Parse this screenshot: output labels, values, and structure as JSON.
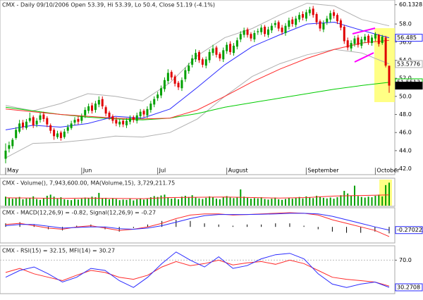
{
  "chart_data": [
    {
      "type": "candlestick",
      "title": "CMX - Daily 09/10/2006 Open 53.39, Hi 53.39, Lo 50.4, Close 51.19 (-4.1%)",
      "categories": [
        "May",
        null,
        null,
        null,
        null,
        null,
        null,
        null,
        null,
        null,
        null,
        null,
        null,
        null,
        null,
        null,
        null,
        null,
        null,
        null,
        null,
        null,
        "Jun",
        null,
        null,
        null,
        null,
        null,
        null,
        null,
        null,
        null,
        null,
        null,
        null,
        null,
        null,
        null,
        null,
        null,
        null,
        null,
        null,
        null,
        "Jul",
        null,
        null,
        null,
        null,
        null,
        null,
        null,
        null,
        null,
        null,
        null,
        null,
        null,
        null,
        null,
        null,
        null,
        null,
        null,
        "August",
        null,
        null,
        null,
        null,
        null,
        null,
        null,
        null,
        null,
        null,
        null,
        null,
        null,
        null,
        null,
        null,
        null,
        null,
        null,
        null,
        null,
        null,
        "September",
        null,
        null,
        null,
        null,
        null,
        null,
        null,
        null,
        null,
        null,
        null,
        null,
        null,
        null,
        null,
        null,
        null,
        null,
        null,
        "October",
        null,
        null,
        null,
        null
      ],
      "open": [
        43.1,
        44.2,
        44.5,
        45.4,
        46.1,
        47.1,
        46.5,
        47.3,
        47.7,
        46.9,
        47.4,
        48.0,
        47.6,
        46.8,
        46.3,
        45.5,
        46.0,
        45.5,
        46.2,
        46.5,
        47.1,
        47.5,
        47.3,
        47.9,
        48.4,
        49.0,
        48.5,
        49.1,
        49.7,
        48.8,
        48.2,
        47.8,
        47.4,
        46.9,
        47.3,
        46.8,
        47.2,
        47.7,
        47.3,
        47.8,
        48.4,
        47.9,
        48.5,
        49.1,
        49.8,
        50.1,
        50.8,
        51.7,
        52.7,
        52.2,
        51.5,
        50.9,
        51.9,
        52.8,
        53.5,
        54.1,
        54.9,
        54.1,
        53.4,
        54.0,
        54.8,
        55.4,
        54.7,
        54.1,
        55.0,
        55.8,
        54.8,
        55.5,
        56.3,
        56.8,
        57.4,
        56.9,
        56.3,
        57.1,
        57.1,
        57.7,
        56.8,
        57.3,
        57.9,
        58.2,
        57.6,
        57.0,
        57.7,
        58.5,
        57.9,
        58.5,
        59.1,
        58.6,
        59.2,
        59.7,
        59.1,
        58.3,
        57.4,
        58.2,
        58.5,
        59.3,
        59.0,
        58.4,
        57.7,
        56.2,
        55.3,
        55.8,
        56.5,
        55.6,
        56.2,
        56.7,
        55.9,
        56.4,
        56.8,
        55.9,
        56.5,
        53.39
      ],
      "high": [
        44.8,
        45.0,
        45.4,
        46.6,
        47.4,
        47.4,
        47.5,
        48.2,
        47.9,
        47.6,
        48.2,
        48.3,
        47.8,
        47.0,
        46.5,
        46.2,
        46.2,
        46.4,
        46.9,
        47.3,
        47.7,
        47.8,
        48.1,
        48.8,
        49.2,
        49.3,
        49.5,
        50.0,
        50.0,
        49.0,
        48.4,
        48.0,
        47.7,
        47.5,
        47.5,
        47.6,
        47.9,
        47.9,
        48.2,
        48.6,
        48.6,
        48.9,
        49.5,
        50.0,
        50.5,
        51.2,
        52.1,
        53.0,
        52.9,
        52.4,
        51.7,
        52.1,
        53.2,
        53.7,
        54.6,
        55.2,
        55.1,
        54.3,
        54.4,
        55.2,
        55.7,
        55.6,
        54.9,
        55.4,
        56.0,
        56.1,
        55.9,
        56.5,
        57.2,
        57.6,
        57.6,
        57.1,
        57.3,
        57.5,
        57.9,
        57.9,
        57.7,
        58.1,
        58.4,
        58.4,
        57.9,
        58.1,
        58.7,
        58.8,
        58.9,
        59.3,
        59.4,
        59.6,
        59.9,
        60.0,
        59.3,
        58.5,
        58.4,
        58.9,
        59.5,
        59.6,
        59.2,
        58.6,
        57.9,
        56.5,
        56.2,
        56.7,
        56.8,
        56.6,
        56.9,
        56.9,
        56.8,
        57.1,
        56.9,
        56.8,
        56.7,
        53.39
      ],
      "low": [
        42.6,
        43.8,
        44.2,
        45.2,
        45.9,
        46.3,
        46.3,
        47.1,
        46.5,
        46.6,
        47.1,
        47.2,
        46.6,
        45.9,
        45.2,
        45.3,
        45.1,
        45.3,
        45.9,
        46.3,
        46.8,
        46.9,
        47.0,
        47.6,
        48.1,
        48.1,
        48.2,
        48.8,
        48.6,
        47.8,
        47.4,
        47.0,
        46.7,
        46.6,
        46.6,
        46.5,
        46.9,
        47.1,
        47.0,
        47.5,
        47.7,
        47.6,
        48.2,
        48.8,
        49.5,
        49.8,
        50.5,
        51.4,
        51.8,
        51.1,
        50.7,
        50.6,
        51.6,
        52.5,
        53.2,
        53.8,
        53.7,
        53.2,
        53.1,
        53.7,
        54.5,
        54.3,
        53.9,
        53.8,
        54.7,
        54.6,
        54.5,
        55.2,
        56.0,
        56.5,
        56.5,
        56.1,
        56.0,
        56.8,
        56.8,
        56.6,
        56.5,
        57.0,
        57.6,
        57.2,
        56.8,
        56.7,
        57.4,
        57.7,
        57.6,
        58.2,
        58.4,
        58.3,
        58.9,
        58.7,
        57.9,
        57.2,
        57.1,
        57.9,
        58.2,
        58.6,
        58.0,
        57.3,
        55.8,
        55.1,
        55.0,
        55.5,
        55.4,
        55.3,
        55.9,
        55.7,
        55.6,
        56.1,
        55.5,
        55.7,
        53.2,
        50.4
      ],
      "close": [
        44.0,
        44.6,
        45.2,
        46.3,
        47.0,
        46.6,
        47.2,
        47.6,
        46.8,
        47.3,
        47.9,
        47.5,
        46.9,
        46.2,
        45.6,
        45.9,
        45.4,
        46.1,
        46.6,
        47.0,
        47.4,
        47.2,
        47.8,
        48.5,
        48.9,
        48.4,
        49.2,
        49.6,
        48.9,
        48.1,
        47.7,
        47.3,
        47.0,
        47.2,
        46.9,
        47.3,
        47.6,
        47.4,
        47.9,
        48.3,
        48.0,
        48.6,
        49.2,
        49.7,
        50.2,
        50.9,
        51.8,
        52.6,
        52.1,
        51.4,
        51.0,
        51.8,
        52.9,
        53.4,
        54.2,
        54.8,
        54.0,
        53.5,
        54.1,
        54.9,
        55.3,
        54.6,
        54.2,
        55.1,
        55.7,
        54.9,
        55.6,
        56.2,
        56.9,
        57.3,
        56.8,
        56.4,
        57.0,
        57.2,
        57.6,
        56.9,
        57.4,
        57.8,
        58.1,
        57.5,
        57.1,
        57.8,
        58.4,
        58.0,
        58.6,
        59.0,
        58.7,
        59.3,
        59.6,
        59.0,
        58.2,
        57.5,
        58.1,
        58.6,
        59.2,
        58.9,
        58.3,
        57.6,
        56.1,
        55.4,
        55.9,
        56.4,
        55.7,
        56.3,
        56.6,
        56.0,
        56.5,
        56.9,
        55.8,
        56.6,
        53.4,
        51.19
      ],
      "up_color": "#00a000",
      "down_color": "#e00000",
      "overlays": [
        {
          "color": "#b0b0b0",
          "values": [
            49.0,
            48.4,
            49.2,
            50.3,
            50.0,
            49.5,
            51.5,
            54.5,
            56.5,
            57.5,
            59.0,
            60.3,
            60.0,
            58.5,
            57.8
          ]
        },
        {
          "color": "#b0b0b0",
          "tag": true,
          "values": [
            43.2,
            44.8,
            44.9,
            45.2,
            45.6,
            45.5,
            46.0,
            47.5,
            50.0,
            52.2,
            53.6,
            54.6,
            55.2,
            54.8,
            53.5776
          ]
        },
        {
          "color": "#00cc00",
          "tag": true,
          "values": [
            48.8,
            48.4,
            48.0,
            47.7,
            47.5,
            47.4,
            47.6,
            48.1,
            48.8,
            49.3,
            49.8,
            50.3,
            50.8,
            51.2,
            51.5513
          ]
        },
        {
          "color": "#ff2a2a",
          "values": [
            48.6,
            48.3,
            48.0,
            47.8,
            47.6,
            47.5,
            47.6,
            48.5,
            50.0,
            51.6,
            53.0,
            54.2,
            55.2,
            55.9,
            56.2
          ]
        },
        {
          "color": "#2a2aff",
          "tag": true,
          "values": [
            46.3,
            46.8,
            46.6,
            47.0,
            47.8,
            47.6,
            48.6,
            51.0,
            53.5,
            55.5,
            56.8,
            58.0,
            58.2,
            57.3,
            56.485
          ]
        }
      ],
      "ylim": [
        41.5,
        60.5
      ],
      "yticks": [
        {
          "value": 42,
          "label": "42.0"
        },
        {
          "value": 44,
          "label": "44.0"
        },
        {
          "value": 46,
          "label": "46.0"
        },
        {
          "value": 48,
          "label": "48.0"
        },
        {
          "value": 50,
          "label": "50.0"
        },
        {
          "value": 52,
          "label": "52.0"
        },
        {
          "value": 54,
          "label": "54.0"
        },
        {
          "value": 56,
          "label": "56.0"
        },
        {
          "value": 58,
          "label": "58.0"
        },
        60.1328
      ]
    },
    {
      "type": "bar",
      "title": "CMX - Volume(), 7,943,600.00, MA(Volume,15), 3,729,211.75",
      "color": "#00a000",
      "values": [
        3100000.0,
        2600000.0,
        2400000.0,
        2800000.0,
        3000000.0,
        2200000.0,
        2500000.0,
        2700000.0,
        3200000.0,
        2300000.0,
        2000000.0,
        2600000.0,
        3400000.0,
        3800000.0,
        3100000.0,
        2400000.0,
        2900000.0,
        2200000.0,
        2000000.0,
        1900000.0,
        2300000.0,
        2100000.0,
        2400000.0,
        2800000.0,
        2600000.0,
        3100000.0,
        2900000.0,
        4400000.0,
        2500000.0,
        2700000.0,
        2200000.0,
        2600000.0,
        2300000.0,
        1900000.0,
        2100000.0,
        2000000.0,
        2400000.0,
        1800000.0,
        2200000.0,
        2500000.0,
        2100000.0,
        2300000.0,
        2900000.0,
        3300000.0,
        3000000.0,
        3500000.0,
        3800000.0,
        2900000.0,
        2400000.0,
        2600000.0,
        2200000.0,
        3100000.0,
        3400000.0,
        3000000.0,
        3600000.0,
        2800000.0,
        2500000.0,
        2300000.0,
        2700000.0,
        3200000.0,
        2900000.0,
        2400000.0,
        2200000.0,
        3000000.0,
        3300000.0,
        2800000.0,
        2600000.0,
        2900000.0,
        5600000.0,
        3100000.0,
        2700000.0,
        2400000.0,
        2600000.0,
        2500000.0,
        2900000.0,
        2300000.0,
        2100000.0,
        2400000.0,
        2800000.0,
        2200000.0,
        2000000.0,
        2300000.0,
        2600000.0,
        2400000.0,
        2700000.0,
        3000000.0,
        2500000.0,
        3200000.0,
        2900000.0,
        2600000.0,
        3400000.0,
        3100000.0,
        2700000.0,
        2500000.0,
        2800000.0,
        2400000.0,
        2900000.0,
        3600000.0,
        5100000.0,
        4200000.0,
        3500000.0,
        6900000.0,
        3300000.0,
        3000000.0,
        2800000.0,
        3100000.0,
        2900000.0,
        3400000.0,
        3800000.0,
        3200000.0,
        7100000.0,
        7943600
      ],
      "ma": {
        "color": "#ff2a2a",
        "values": [
          2700000.0,
          2600000.0,
          2500000.0,
          2600000.0,
          2500000.0,
          2400000.0,
          2800000.0,
          2900000.0,
          3000000.0,
          2800000.0,
          2600000.0,
          2800000.0,
          3300000.0,
          3500000.0,
          3729211.75
        ]
      },
      "ylim": [
        0,
        9000000
      ]
    },
    {
      "type": "macd",
      "title": "CMX - MACD(12,26,9) = -0.82, Signal(12,26,9) = -0.27",
      "histogram": {
        "color": "#000000",
        "values": [
          0.3,
          0.4,
          0.2,
          -0.2,
          -0.3,
          0.1,
          0.2,
          -0.2,
          -0.4,
          -0.1,
          0.2,
          0.5,
          0.6,
          0.5,
          0.3,
          0.2,
          0.1,
          0.2,
          0.2,
          0.3,
          0.3,
          0.1,
          -0.2,
          -0.4,
          -0.5,
          -0.5,
          -0.4,
          -0.55
        ]
      },
      "series": [
        {
          "color": "#ff2a2a",
          "values": [
            0.2,
            0.3,
            0.1,
            -0.1,
            -0.2,
            0.0,
            0.1,
            -0.1,
            -0.3,
            -0.2,
            0.0,
            0.3,
            0.7,
            1.0,
            1.1,
            1.1,
            1.0,
            1.05,
            1.1,
            1.15,
            1.2,
            1.15,
            1.0,
            0.6,
            0.3,
            0.0,
            -0.3,
            -0.82
          ]
        },
        {
          "color": "#2a2aff",
          "tag": true,
          "values": [
            0.1,
            0.2,
            0.2,
            0.05,
            -0.1,
            -0.05,
            0.0,
            0.0,
            -0.15,
            -0.2,
            -0.1,
            0.1,
            0.4,
            0.7,
            0.95,
            1.05,
            1.05,
            1.05,
            1.07,
            1.1,
            1.15,
            1.15,
            1.1,
            0.9,
            0.6,
            0.3,
            0.0,
            -0.270222
          ]
        }
      ],
      "ylim": [
        -1.3,
        1.5
      ]
    },
    {
      "type": "line",
      "title": "CMX - RSI(15) = 32.15, MFI(14) = 30.27",
      "series": [
        {
          "color": "#ff2a2a",
          "values": [
            52,
            58,
            50,
            45,
            40,
            48,
            55,
            52,
            45,
            42,
            48,
            60,
            68,
            62,
            65,
            70,
            63,
            66,
            68,
            64,
            70,
            65,
            55,
            45,
            42,
            40,
            38,
            32.15
          ]
        },
        {
          "color": "#2a2aff",
          "tag": true,
          "values": [
            45,
            55,
            60,
            50,
            38,
            45,
            58,
            55,
            40,
            30,
            45,
            65,
            82,
            70,
            60,
            75,
            58,
            62,
            72,
            78,
            80,
            72,
            50,
            35,
            30,
            35,
            38,
            30.2708
          ]
        }
      ],
      "ylim": [
        22,
        89
      ],
      "yticks": [
        {
          "value": 70,
          "label": "70.0"
        }
      ]
    }
  ]
}
